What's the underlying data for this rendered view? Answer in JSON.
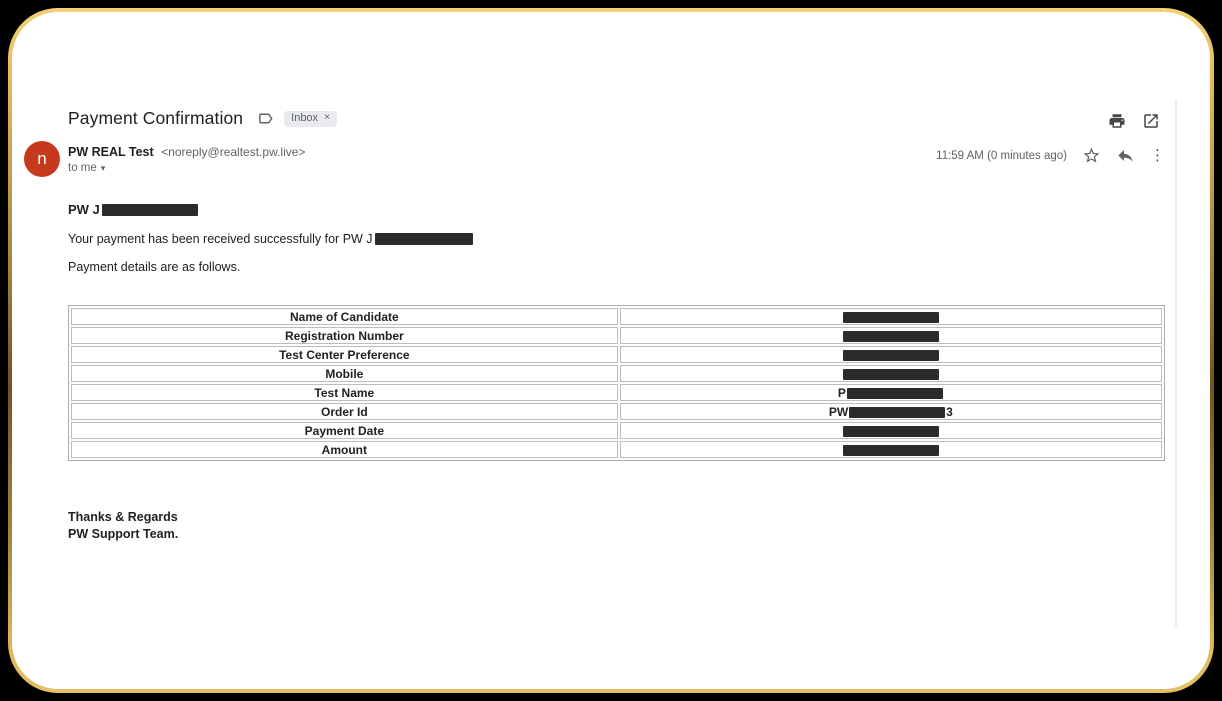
{
  "theme": {
    "frame_gold": "#e0b95a",
    "frame_gold_dark": "#6e5526",
    "avatar_color": "#c5391c",
    "redaction_color": "#2b2b2b"
  },
  "header": {
    "subject": "Payment Confirmation",
    "label_icon": "label-icon",
    "inbox_chip_label": "Inbox",
    "inbox_chip_close": "×",
    "printer_icon": "printer-icon",
    "open_in_new_icon": "open-in-new-icon"
  },
  "sender": {
    "avatar_letter": "n",
    "name": "PW REAL Test",
    "email": "<noreply@realtest.pw.live>",
    "recipient": "to me",
    "timestamp": "11:59 AM (0 minutes ago)",
    "star_icon": "star-icon",
    "reply_icon": "reply-icon",
    "more_icon": "more-vertical-icon",
    "more_glyph": "⋮",
    "caret_glyph": "▾"
  },
  "body": {
    "greeting_prefix": "PW J",
    "para1_prefix": "Your payment has been received successfully for PW J",
    "para2": "Payment details are as follows.",
    "table_rows": [
      {
        "label": "Name of Candidate",
        "value_prefix": "",
        "value_suffix": ""
      },
      {
        "label": "Registration Number",
        "value_prefix": "",
        "value_suffix": ""
      },
      {
        "label": "Test Center Preference",
        "value_prefix": "",
        "value_suffix": ""
      },
      {
        "label": "Mobile",
        "value_prefix": "",
        "value_suffix": ""
      },
      {
        "label": "Test Name",
        "value_prefix": "P",
        "value_suffix": ""
      },
      {
        "label": "Order Id",
        "value_prefix": "PW",
        "value_suffix": "3"
      },
      {
        "label": "Payment Date",
        "value_prefix": "",
        "value_suffix": ""
      },
      {
        "label": "Amount",
        "value_prefix": "",
        "value_suffix": ""
      }
    ],
    "signature_line1": "Thanks & Regards",
    "signature_line2": "PW Support Team."
  }
}
